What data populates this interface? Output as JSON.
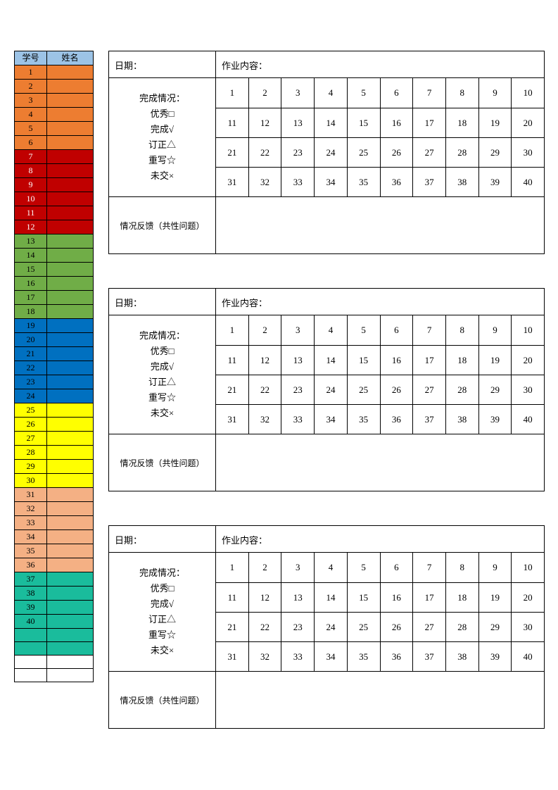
{
  "roster": {
    "header": {
      "id": "学号",
      "name": "姓名"
    },
    "headerBg": "#9cc3e6",
    "rows": [
      {
        "num": "1",
        "bg": "#ed7d31",
        "fg": "#000000"
      },
      {
        "num": "2",
        "bg": "#ed7d31",
        "fg": "#000000"
      },
      {
        "num": "3",
        "bg": "#ed7d31",
        "fg": "#000000"
      },
      {
        "num": "4",
        "bg": "#ed7d31",
        "fg": "#000000"
      },
      {
        "num": "5",
        "bg": "#ed7d31",
        "fg": "#000000"
      },
      {
        "num": "6",
        "bg": "#ed7d31",
        "fg": "#000000"
      },
      {
        "num": "7",
        "bg": "#c00000",
        "fg": "#ffffff"
      },
      {
        "num": "8",
        "bg": "#c00000",
        "fg": "#ffffff"
      },
      {
        "num": "9",
        "bg": "#c00000",
        "fg": "#ffffff"
      },
      {
        "num": "10",
        "bg": "#c00000",
        "fg": "#ffffff"
      },
      {
        "num": "11",
        "bg": "#c00000",
        "fg": "#ffffff"
      },
      {
        "num": "12",
        "bg": "#c00000",
        "fg": "#ffffff"
      },
      {
        "num": "13",
        "bg": "#70ad47",
        "fg": "#000000"
      },
      {
        "num": "14",
        "bg": "#70ad47",
        "fg": "#000000"
      },
      {
        "num": "15",
        "bg": "#70ad47",
        "fg": "#000000"
      },
      {
        "num": "16",
        "bg": "#70ad47",
        "fg": "#000000"
      },
      {
        "num": "17",
        "bg": "#70ad47",
        "fg": "#000000"
      },
      {
        "num": "18",
        "bg": "#70ad47",
        "fg": "#000000"
      },
      {
        "num": "19",
        "bg": "#0070c0",
        "fg": "#000000"
      },
      {
        "num": "20",
        "bg": "#0070c0",
        "fg": "#000000"
      },
      {
        "num": "21",
        "bg": "#0070c0",
        "fg": "#000000"
      },
      {
        "num": "22",
        "bg": "#0070c0",
        "fg": "#000000"
      },
      {
        "num": "23",
        "bg": "#0070c0",
        "fg": "#000000"
      },
      {
        "num": "24",
        "bg": "#0070c0",
        "fg": "#000000"
      },
      {
        "num": "25",
        "bg": "#ffff00",
        "fg": "#000000"
      },
      {
        "num": "26",
        "bg": "#ffff00",
        "fg": "#000000"
      },
      {
        "num": "27",
        "bg": "#ffff00",
        "fg": "#000000"
      },
      {
        "num": "28",
        "bg": "#ffff00",
        "fg": "#000000"
      },
      {
        "num": "29",
        "bg": "#ffff00",
        "fg": "#000000"
      },
      {
        "num": "30",
        "bg": "#ffff00",
        "fg": "#000000"
      },
      {
        "num": "31",
        "bg": "#f4b084",
        "fg": "#000000"
      },
      {
        "num": "32",
        "bg": "#f4b084",
        "fg": "#000000"
      },
      {
        "num": "33",
        "bg": "#f4b084",
        "fg": "#000000"
      },
      {
        "num": "34",
        "bg": "#f4b084",
        "fg": "#000000"
      },
      {
        "num": "35",
        "bg": "#f4b084",
        "fg": "#000000"
      },
      {
        "num": "36",
        "bg": "#f4b084",
        "fg": "#000000"
      },
      {
        "num": "37",
        "bg": "#1abc9c",
        "fg": "#000000"
      },
      {
        "num": "38",
        "bg": "#1abc9c",
        "fg": "#000000"
      },
      {
        "num": "39",
        "bg": "#1abc9c",
        "fg": "#000000"
      },
      {
        "num": "40",
        "bg": "#1abc9c",
        "fg": "#000000"
      },
      {
        "num": "",
        "bg": "#1abc9c",
        "fg": "#000000"
      },
      {
        "num": "",
        "bg": "#1abc9c",
        "fg": "#000000"
      },
      {
        "num": "",
        "bg": "#ffffff",
        "fg": "#000000"
      },
      {
        "num": "",
        "bg": "#ffffff",
        "fg": "#000000"
      }
    ]
  },
  "hwLabels": {
    "date": "日期：",
    "content": "作业内容：",
    "statusTitle": "完成情况：",
    "status1": "优秀□",
    "status2": "完成√",
    "status3": "订正△",
    "status4": "重写☆",
    "status5": "未交×",
    "feedback": "情况反馈（共性问题）"
  },
  "hwGrid": {
    "rows": 4,
    "cols": 10,
    "start": 1
  },
  "blockCount": 3
}
